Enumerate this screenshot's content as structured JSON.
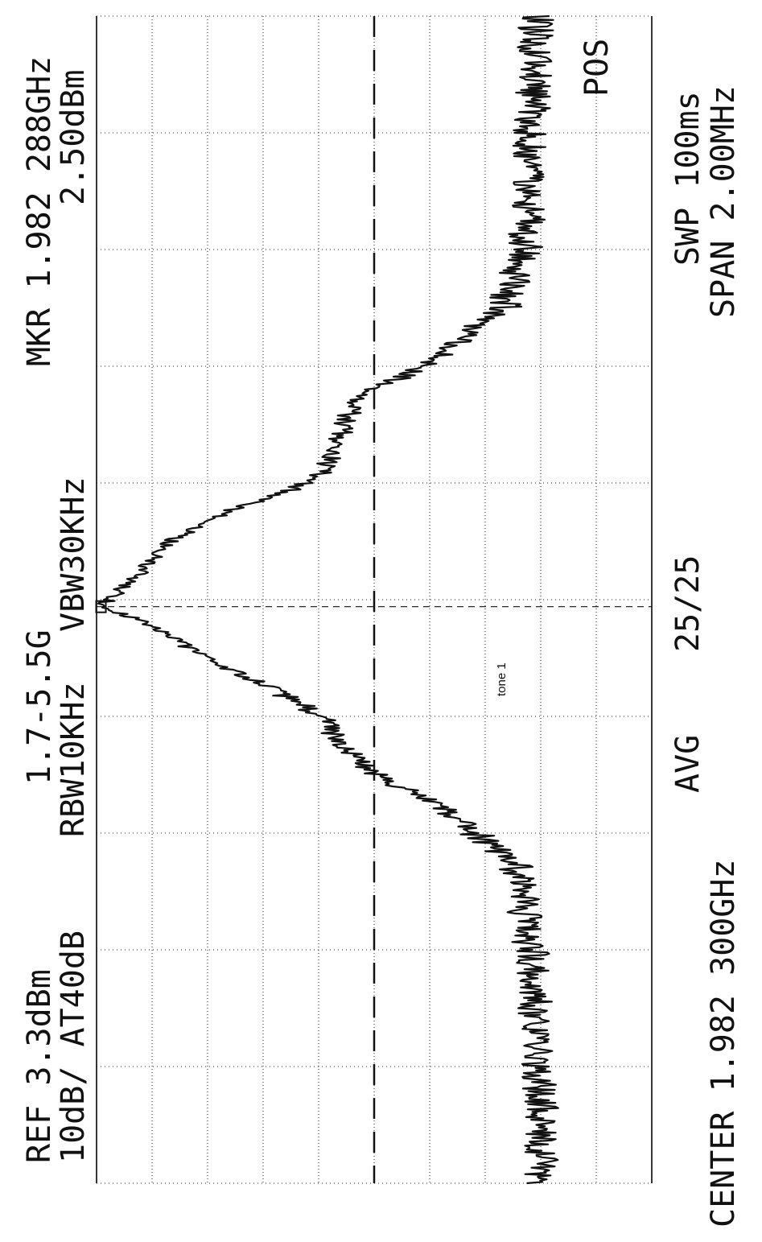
{
  "header": {
    "ref_level": "REF 3.3dBm",
    "scale_atten": "10dB/ AT40dB",
    "band": "1.7-5.5G",
    "rbw": "RBW10KHz",
    "vbw": "VBW30KHz",
    "marker_freq": "MKR 1.982 288GHz",
    "marker_level": "2.50dBm"
  },
  "footer": {
    "center": "CENTER 1.982 300GHz",
    "avg": "AVG",
    "avg_count": "25/25",
    "sweep": "SWP 100ms",
    "span": "SPAN 2.00MHz"
  },
  "side": {
    "detector": "POS"
  },
  "annotation": {
    "tone": "tone 1"
  },
  "chart_data": {
    "type": "line",
    "orientation": "rotated-90-ccw",
    "xlabel": "",
    "ylabel": "",
    "x_unit": "GHz",
    "y_unit": "dBm",
    "xlim": [
      1.9813,
      1.9833
    ],
    "ylim": [
      -96.7,
      3.3
    ],
    "grid": true,
    "divisions": {
      "x": 10,
      "y": 10
    },
    "reference_line_dBm": -46.7,
    "marker": {
      "x": 1.982288,
      "y": 2.5
    },
    "series": [
      {
        "x": [
          1.9813,
          1.9815,
          1.9817,
          1.98185,
          1.9819,
          1.98195,
          1.982,
          1.98205,
          1.9821,
          1.98215,
          1.9822,
          1.98225,
          1.98229,
          1.98235,
          1.9824,
          1.98245,
          1.9825,
          1.98255,
          1.9826,
          1.98265,
          1.9827,
          1.98275,
          1.9828,
          1.98285,
          1.9829,
          1.9831,
          1.9833
        ],
        "values": [
          -77,
          -76.5,
          -75,
          -72,
          -65,
          -58,
          -47,
          -41,
          -37,
          -28,
          -16,
          -8,
          2.5,
          -5,
          -10,
          -20,
          -35,
          -40,
          -41,
          -45,
          -56,
          -63,
          -70,
          -72,
          -74,
          -75,
          -76
        ]
      }
    ]
  }
}
